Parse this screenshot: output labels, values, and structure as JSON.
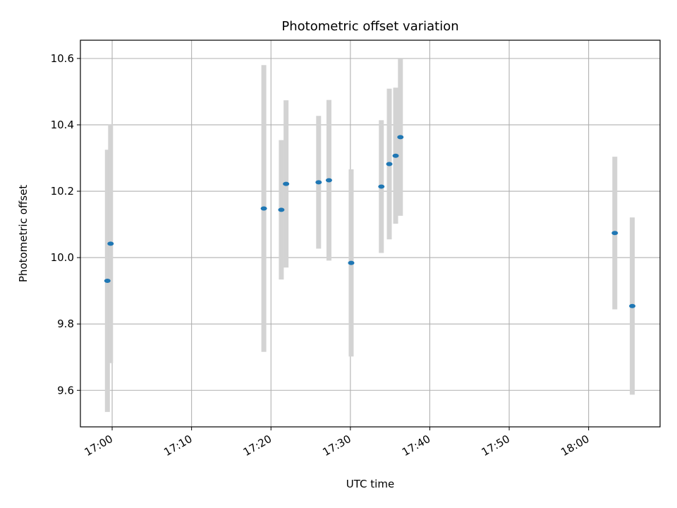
{
  "chart_data": {
    "type": "scatter",
    "title": "Photometric offset variation",
    "xlabel": "UTC time",
    "ylabel": "Photometric offset",
    "xlim": [
      "16:56",
      "18:09"
    ],
    "ylim": [
      9.49,
      10.655
    ],
    "x_ticks": [
      "17:00",
      "17:10",
      "17:20",
      "17:30",
      "17:40",
      "17:50",
      "18:00"
    ],
    "y_ticks": [
      "9.6",
      "9.8",
      "10.0",
      "10.2",
      "10.4",
      "10.6"
    ],
    "grid": true,
    "error_bar_color": "#d3d3d3",
    "marker_color": "#1f77b4",
    "points": [
      {
        "time": "16:59:24",
        "y": 9.93,
        "err": 0.395
      },
      {
        "time": "16:59:48",
        "y": 10.042,
        "err": 0.36
      },
      {
        "time": "17:19:06",
        "y": 10.148,
        "err": 0.432
      },
      {
        "time": "17:21:18",
        "y": 10.144,
        "err": 0.21
      },
      {
        "time": "17:21:54",
        "y": 10.222,
        "err": 0.252
      },
      {
        "time": "17:26:00",
        "y": 10.227,
        "err": 0.2
      },
      {
        "time": "17:27:18",
        "y": 10.233,
        "err": 0.242
      },
      {
        "time": "17:30:06",
        "y": 9.984,
        "err": 0.282
      },
      {
        "time": "17:33:54",
        "y": 10.214,
        "err": 0.2
      },
      {
        "time": "17:34:54",
        "y": 10.282,
        "err": 0.227
      },
      {
        "time": "17:35:42",
        "y": 10.307,
        "err": 0.205
      },
      {
        "time": "17:36:18",
        "y": 10.363,
        "err": 0.237
      },
      {
        "time": "18:03:18",
        "y": 10.074,
        "err": 0.23
      },
      {
        "time": "18:05:30",
        "y": 9.854,
        "err": 0.267
      }
    ]
  }
}
